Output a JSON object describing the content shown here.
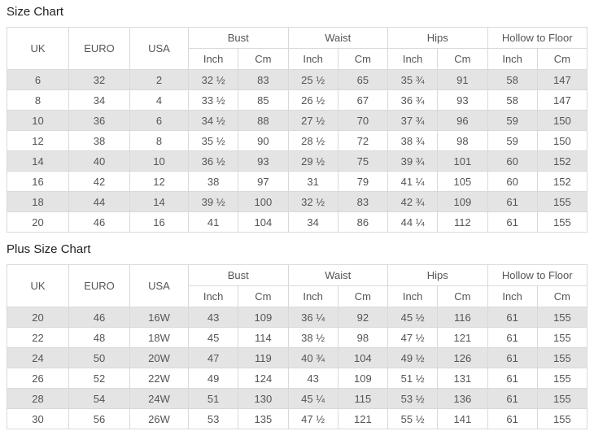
{
  "colors": {
    "background": "#ffffff",
    "stripe_row": "#e4e4e4",
    "table_border": "#d9d9d9",
    "cell_text": "#555555",
    "title_text": "#222222"
  },
  "chart_data": [
    {
      "type": "table",
      "title": "Size Chart",
      "rowspan_headers": [
        "UK",
        "EURO",
        "USA"
      ],
      "group_headers": [
        "Bust",
        "Waist",
        "Hips",
        "Hollow to Floor"
      ],
      "unit_headers": [
        "Inch",
        "Cm"
      ],
      "columns": [
        "UK",
        "EURO",
        "USA",
        "Bust Inch",
        "Bust Cm",
        "Waist Inch",
        "Waist Cm",
        "Hips Inch",
        "Hips Cm",
        "Hollow to Floor Inch",
        "Hollow to Floor Cm"
      ],
      "rows": [
        [
          "6",
          "32",
          "2",
          "32 ½",
          "83",
          "25 ½",
          "65",
          "35 ¾",
          "91",
          "58",
          "147"
        ],
        [
          "8",
          "34",
          "4",
          "33 ½",
          "85",
          "26 ½",
          "67",
          "36 ¾",
          "93",
          "58",
          "147"
        ],
        [
          "10",
          "36",
          "6",
          "34 ½",
          "88",
          "27 ½",
          "70",
          "37 ¾",
          "96",
          "59",
          "150"
        ],
        [
          "12",
          "38",
          "8",
          "35 ½",
          "90",
          "28 ½",
          "72",
          "38 ¾",
          "98",
          "59",
          "150"
        ],
        [
          "14",
          "40",
          "10",
          "36 ½",
          "93",
          "29 ½",
          "75",
          "39 ¾",
          "101",
          "60",
          "152"
        ],
        [
          "16",
          "42",
          "12",
          "38",
          "97",
          "31",
          "79",
          "41 ¼",
          "105",
          "60",
          "152"
        ],
        [
          "18",
          "44",
          "14",
          "39 ½",
          "100",
          "32 ½",
          "83",
          "42 ¾",
          "109",
          "61",
          "155"
        ],
        [
          "20",
          "46",
          "16",
          "41",
          "104",
          "34",
          "86",
          "44 ¼",
          "112",
          "61",
          "155"
        ]
      ]
    },
    {
      "type": "table",
      "title": "Plus Size Chart",
      "rowspan_headers": [
        "UK",
        "EURO",
        "USA"
      ],
      "group_headers": [
        "Bust",
        "Waist",
        "Hips",
        "Hollow to Floor"
      ],
      "unit_headers": [
        "Inch",
        "Cm"
      ],
      "columns": [
        "UK",
        "EURO",
        "USA",
        "Bust Inch",
        "Bust Cm",
        "Waist Inch",
        "Waist Cm",
        "Hips Inch",
        "Hips Cm",
        "Hollow to Floor Inch",
        "Hollow to Floor Cm"
      ],
      "rows": [
        [
          "20",
          "46",
          "16W",
          "43",
          "109",
          "36 ¼",
          "92",
          "45 ½",
          "116",
          "61",
          "155"
        ],
        [
          "22",
          "48",
          "18W",
          "45",
          "114",
          "38 ½",
          "98",
          "47 ½",
          "121",
          "61",
          "155"
        ],
        [
          "24",
          "50",
          "20W",
          "47",
          "119",
          "40 ¾",
          "104",
          "49 ½",
          "126",
          "61",
          "155"
        ],
        [
          "26",
          "52",
          "22W",
          "49",
          "124",
          "43",
          "109",
          "51 ½",
          "131",
          "61",
          "155"
        ],
        [
          "28",
          "54",
          "24W",
          "51",
          "130",
          "45 ¼",
          "115",
          "53 ½",
          "136",
          "61",
          "155"
        ],
        [
          "30",
          "56",
          "26W",
          "53",
          "135",
          "47 ½",
          "121",
          "55 ½",
          "141",
          "61",
          "155"
        ]
      ]
    }
  ]
}
